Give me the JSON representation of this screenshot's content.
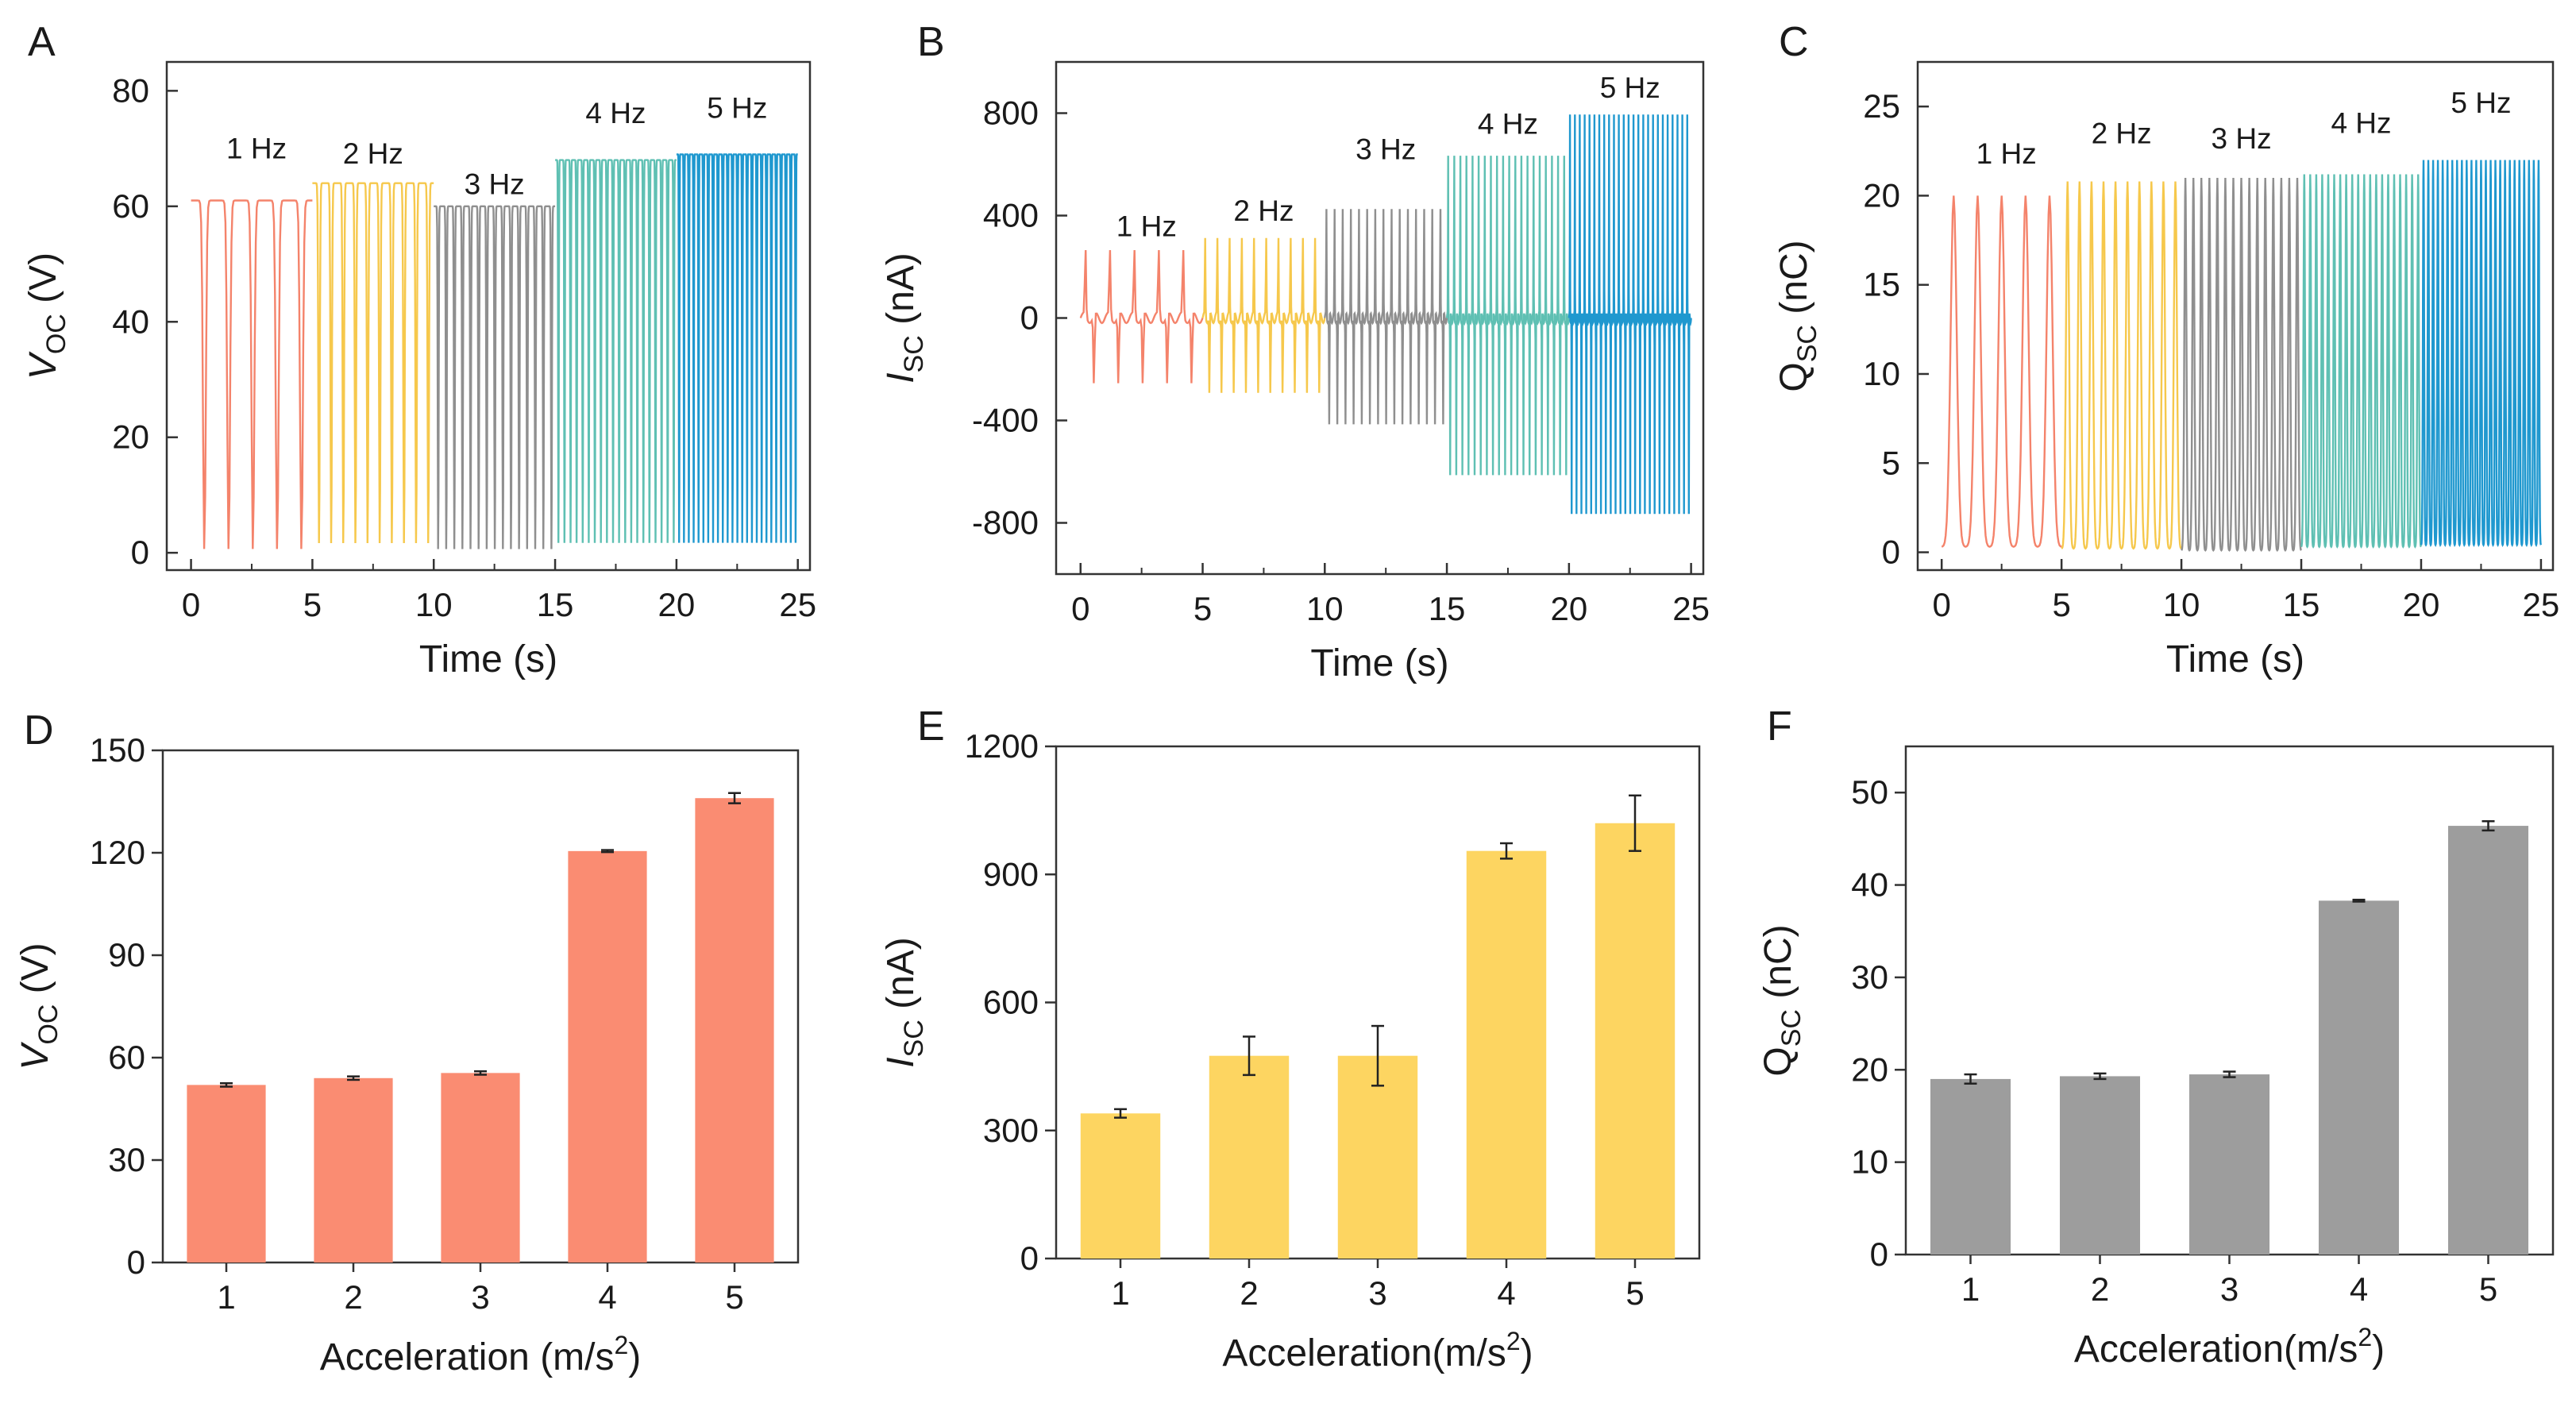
{
  "chart_data": [
    {
      "panel": "A",
      "type": "line",
      "xlabel": "Time (s)",
      "ylabel_main": "V",
      "ylabel_sub": "OC",
      "ylabel_unit": " (V)",
      "xlim": [
        -1,
        25.5
      ],
      "ylim": [
        -3,
        85
      ],
      "xticks": [
        "0",
        "5",
        "10",
        "15",
        "20",
        "25"
      ],
      "yticks": [
        "0",
        "20",
        "40",
        "60",
        "80"
      ],
      "segments": [
        {
          "label": "1 Hz",
          "freq": 1,
          "t": [
            0,
            5
          ],
          "min": 0,
          "max": 61,
          "color": "#f4836b"
        },
        {
          "label": "2 Hz",
          "freq": 2,
          "t": [
            5,
            10
          ],
          "min": 1,
          "max": 64,
          "color": "#f6c84c"
        },
        {
          "label": "3 Hz",
          "freq": 3,
          "t": [
            10,
            15
          ],
          "min": 0,
          "max": 60,
          "color": "#8f8f8f"
        },
        {
          "label": "4 Hz",
          "freq": 4,
          "t": [
            15,
            20
          ],
          "min": 1,
          "max": 68,
          "color": "#5fc0b3"
        },
        {
          "label": "5 Hz",
          "freq": 5,
          "t": [
            20,
            25
          ],
          "min": 1,
          "max": 69,
          "color": "#1f98cf"
        }
      ]
    },
    {
      "panel": "B",
      "type": "line",
      "xlabel": "Time (s)",
      "ylabel_main": "I",
      "ylabel_sub": "SC",
      "ylabel_unit": " (nA)",
      "xlim": [
        -1,
        25.5
      ],
      "ylim": [
        -1000,
        1000
      ],
      "xticks": [
        "0",
        "5",
        "10",
        "15",
        "20",
        "25"
      ],
      "yticks": [
        "-800",
        "-400",
        "0",
        "400",
        "800"
      ],
      "segments": [
        {
          "label": "1 Hz",
          "freq": 1,
          "t": [
            0,
            5
          ],
          "min": -280,
          "max": 270,
          "color": "#f4836b"
        },
        {
          "label": "2 Hz",
          "freq": 2,
          "t": [
            5,
            10
          ],
          "min": -320,
          "max": 320,
          "color": "#f6c84c"
        },
        {
          "label": "3 Hz",
          "freq": 3,
          "t": [
            10,
            15
          ],
          "min": -450,
          "max": 440,
          "color": "#8f8f8f"
        },
        {
          "label": "4 Hz",
          "freq": 4,
          "t": [
            15,
            20
          ],
          "min": -660,
          "max": 660,
          "color": "#5fc0b3"
        },
        {
          "label": "5 Hz",
          "freq": 5,
          "t": [
            20,
            25
          ],
          "min": -820,
          "max": 830,
          "color": "#1f98cf"
        }
      ]
    },
    {
      "panel": "C",
      "type": "line",
      "xlabel": "Time (s)",
      "ylabel_main": "Q",
      "ylabel_sub": "SC",
      "ylabel_unit": " (nC)",
      "xlim": [
        -1,
        25.5
      ],
      "ylim": [
        -1,
        27.5
      ],
      "xticks": [
        "0",
        "5",
        "10",
        "15",
        "20",
        "25"
      ],
      "yticks": [
        "0",
        "5",
        "10",
        "15",
        "20",
        "25"
      ],
      "segments": [
        {
          "label": "1 Hz",
          "freq": 1,
          "t": [
            0,
            5
          ],
          "min": 0.3,
          "max": 20,
          "color": "#f4836b"
        },
        {
          "label": "2 Hz",
          "freq": 2,
          "t": [
            5,
            10
          ],
          "min": 0.2,
          "max": 20.8,
          "color": "#f6c84c"
        },
        {
          "label": "3 Hz",
          "freq": 3,
          "t": [
            10,
            15
          ],
          "min": 0.1,
          "max": 21,
          "color": "#8f8f8f"
        },
        {
          "label": "4 Hz",
          "freq": 4,
          "t": [
            15,
            20
          ],
          "min": 0.3,
          "max": 21.2,
          "color": "#5fc0b3"
        },
        {
          "label": "5 Hz",
          "freq": 5,
          "t": [
            20,
            25
          ],
          "min": 0.4,
          "max": 22,
          "color": "#1f98cf"
        }
      ]
    },
    {
      "panel": "D",
      "type": "bar",
      "xlabel_main": "Acceleration (m/s",
      "xlabel_sup": "2",
      "xlabel_end": ")",
      "ylabel_main": "V",
      "ylabel_sub": "OC",
      "ylabel_unit": " (V)",
      "ylim": [
        0,
        150
      ],
      "yticks": [
        "0",
        "30",
        "60",
        "90",
        "120",
        "150"
      ],
      "categories": [
        "1",
        "2",
        "3",
        "4",
        "5"
      ],
      "values": [
        52,
        54,
        55.5,
        120.5,
        136
      ],
      "errors": [
        0.5,
        0.5,
        0.5,
        0.3,
        1.5
      ],
      "color": "#fa8c72"
    },
    {
      "panel": "E",
      "type": "bar",
      "xlabel_main": "Acceleration(m/s",
      "xlabel_sup": "2",
      "xlabel_end": ")",
      "ylabel_main": "I",
      "ylabel_sub": "SC",
      "ylabel_unit": " (nA)",
      "ylim": [
        0,
        1200
      ],
      "yticks": [
        "0",
        "300",
        "600",
        "900",
        "1200"
      ],
      "categories": [
        "1",
        "2",
        "3",
        "4",
        "5"
      ],
      "values": [
        340,
        475,
        475,
        955,
        1020
      ],
      "errors": [
        10,
        45,
        70,
        18,
        65
      ],
      "color": "#fdd561"
    },
    {
      "panel": "F",
      "type": "bar",
      "xlabel_main": "Acceleration(m/s",
      "xlabel_sup": "2",
      "xlabel_end": ")",
      "ylabel_main": "Q",
      "ylabel_sub": "SC",
      "ylabel_unit": " (nC)",
      "ylim": [
        0,
        55
      ],
      "yticks": [
        "0",
        "10",
        "20",
        "30",
        "40",
        "50"
      ],
      "categories": [
        "1",
        "2",
        "3",
        "4",
        "5"
      ],
      "values": [
        19,
        19.3,
        19.5,
        38.3,
        46.4
      ],
      "errors": [
        0.5,
        0.3,
        0.3,
        0.1,
        0.5
      ],
      "color": "#9d9d9d"
    }
  ]
}
